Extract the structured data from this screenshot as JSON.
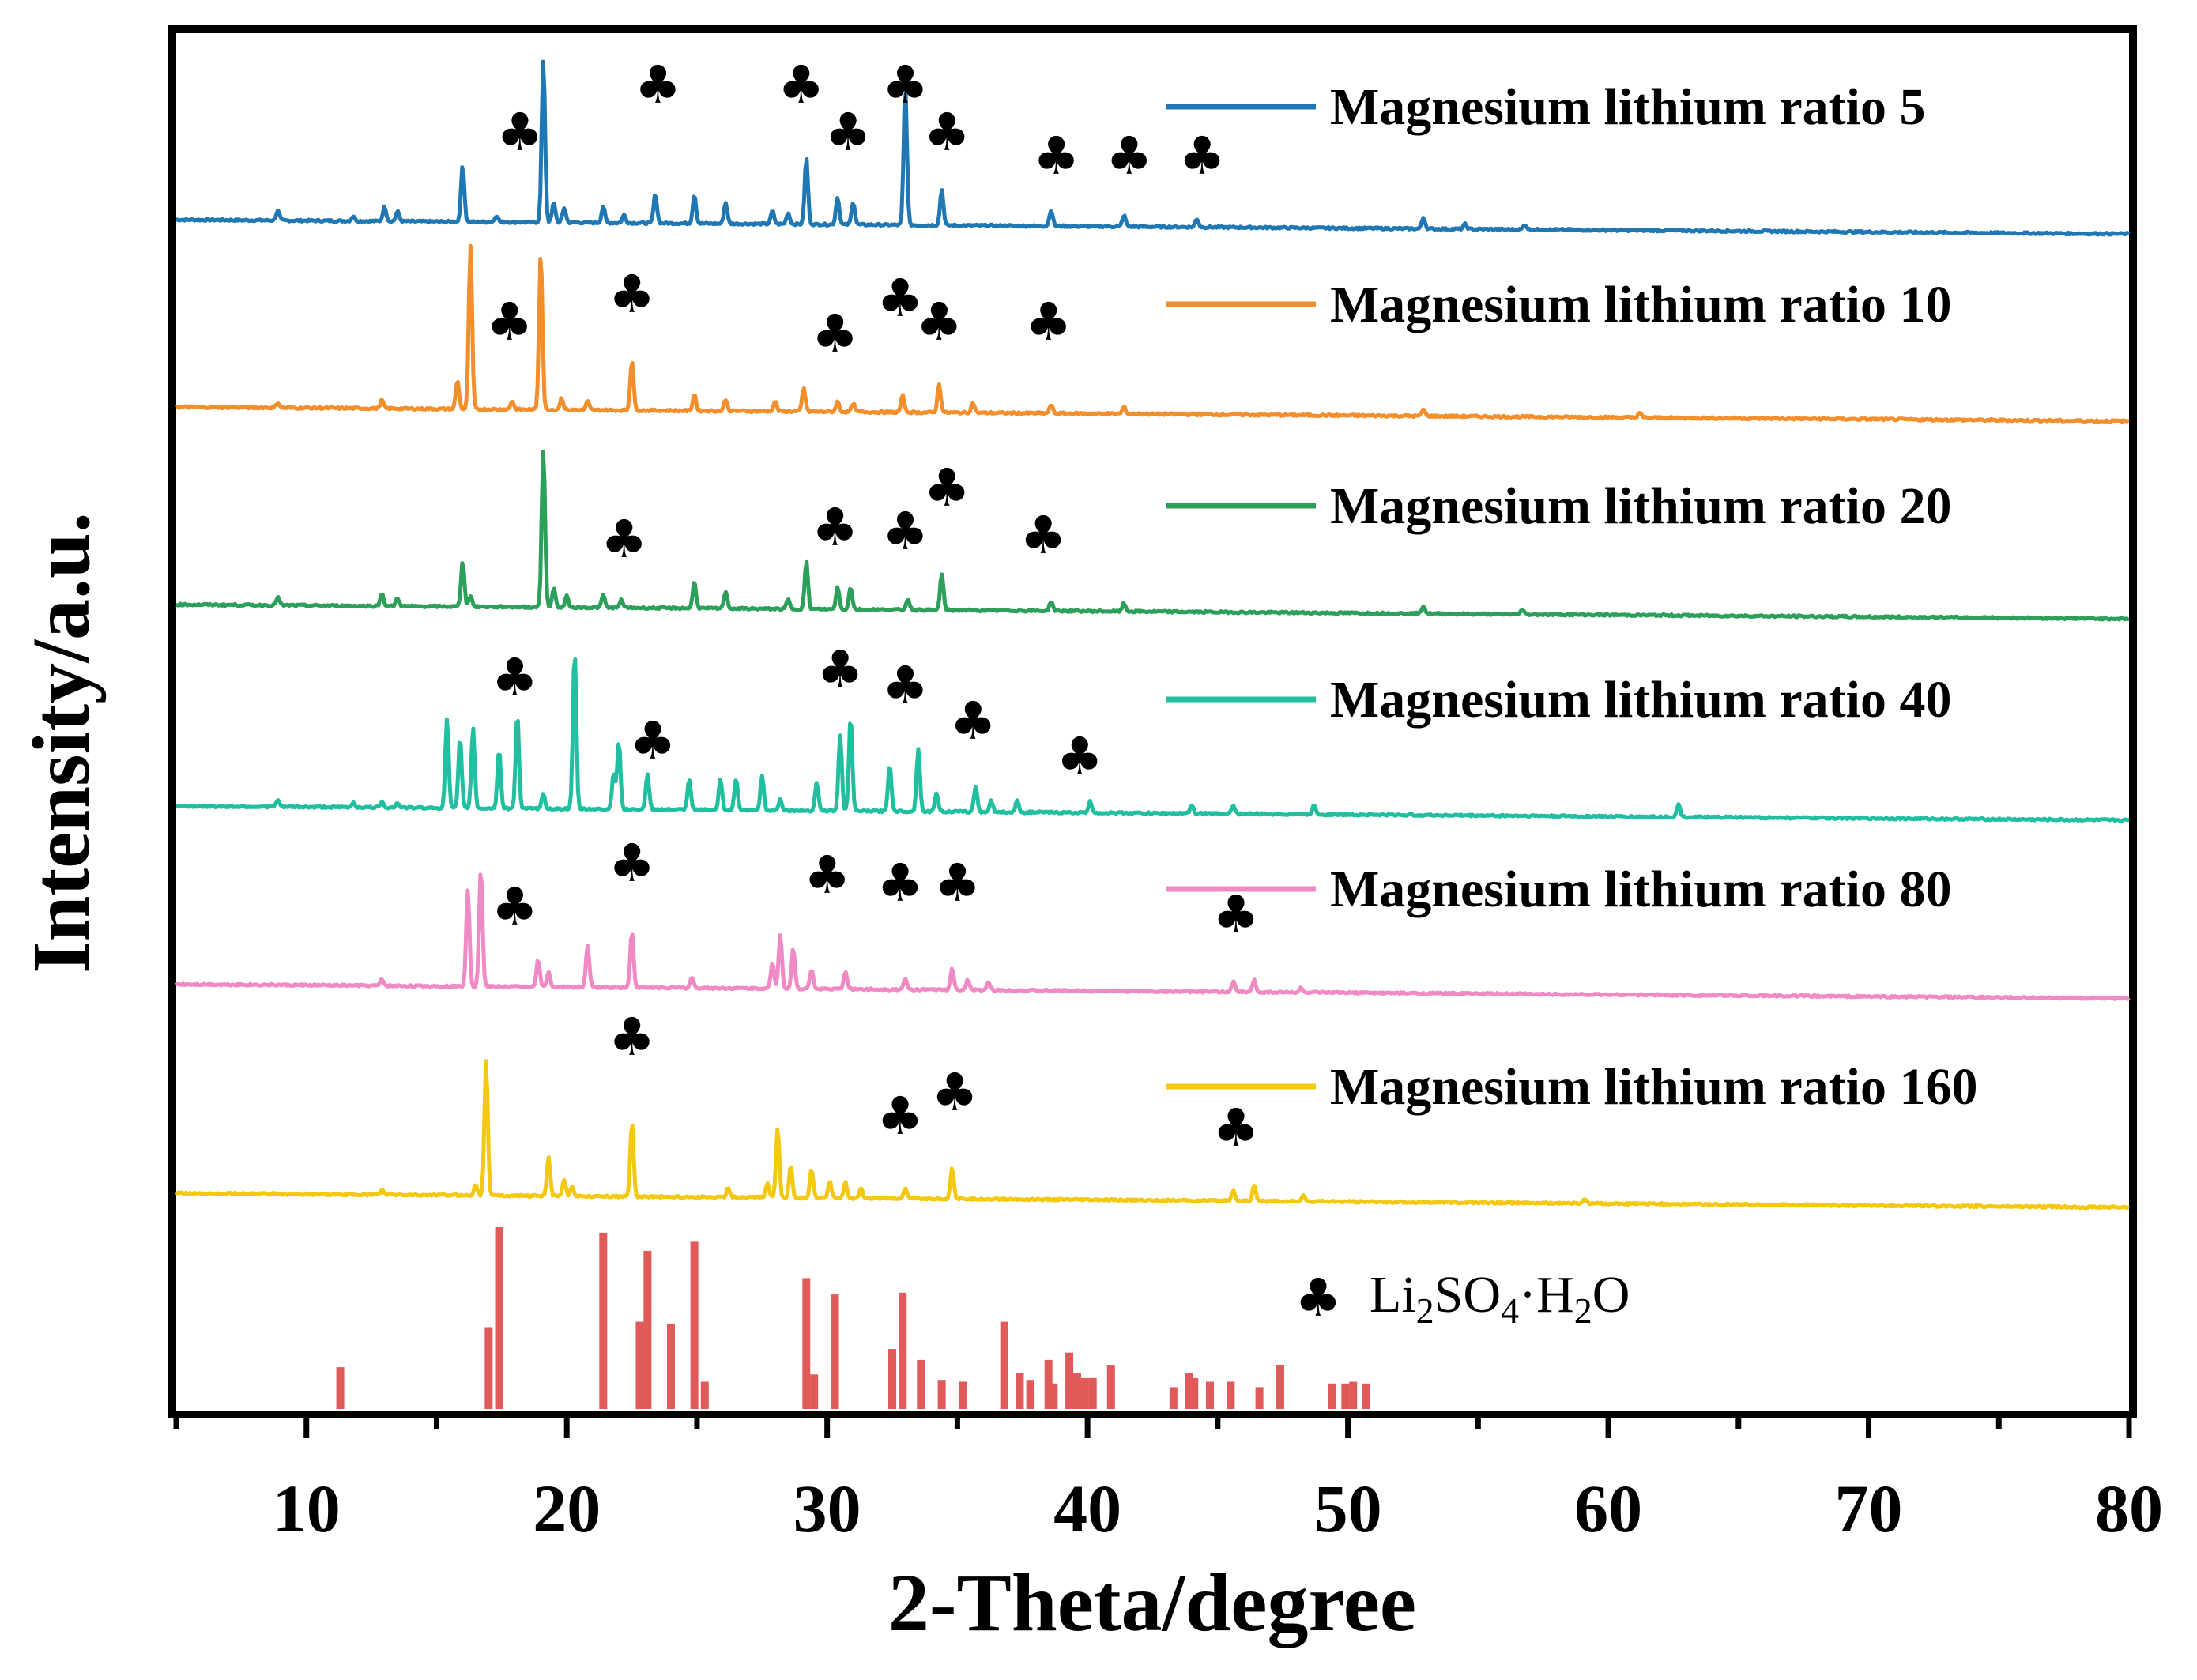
{
  "chart_data": {
    "type": "line",
    "xlabel": "2-Theta/degree",
    "ylabel": "Intensity/a.u.",
    "xlim": [
      5,
      80
    ],
    "xticks": [
      10,
      20,
      30,
      40,
      50,
      60,
      70,
      80
    ],
    "marker_symbol": "♣",
    "reference": {
      "name": "Li2SO4·H2O",
      "label_parts": [
        "Li",
        "2",
        "SO",
        "4",
        "·H",
        "2",
        "O"
      ],
      "color": "#e05a5a",
      "peaks": [
        {
          "x": 11.3,
          "h": 0.23
        },
        {
          "x": 17.0,
          "h": 0.45
        },
        {
          "x": 17.4,
          "h": 1.0
        },
        {
          "x": 21.4,
          "h": 0.97
        },
        {
          "x": 22.8,
          "h": 0.48
        },
        {
          "x": 23.1,
          "h": 0.87
        },
        {
          "x": 24.0,
          "h": 0.47
        },
        {
          "x": 24.9,
          "h": 0.92
        },
        {
          "x": 25.3,
          "h": 0.15
        },
        {
          "x": 29.2,
          "h": 0.72
        },
        {
          "x": 29.5,
          "h": 0.19
        },
        {
          "x": 30.3,
          "h": 0.63
        },
        {
          "x": 32.5,
          "h": 0.33
        },
        {
          "x": 32.9,
          "h": 0.64
        },
        {
          "x": 33.6,
          "h": 0.27
        },
        {
          "x": 34.4,
          "h": 0.16
        },
        {
          "x": 35.2,
          "h": 0.15
        },
        {
          "x": 36.8,
          "h": 0.48
        },
        {
          "x": 37.4,
          "h": 0.2
        },
        {
          "x": 37.8,
          "h": 0.16
        },
        {
          "x": 38.5,
          "h": 0.27
        },
        {
          "x": 38.7,
          "h": 0.14
        },
        {
          "x": 39.3,
          "h": 0.31
        },
        {
          "x": 39.6,
          "h": 0.2
        },
        {
          "x": 39.9,
          "h": 0.17
        },
        {
          "x": 40.2,
          "h": 0.17
        },
        {
          "x": 40.9,
          "h": 0.24
        },
        {
          "x": 43.3,
          "h": 0.12
        },
        {
          "x": 43.9,
          "h": 0.2
        },
        {
          "x": 44.1,
          "h": 0.17
        },
        {
          "x": 44.7,
          "h": 0.15
        },
        {
          "x": 45.5,
          "h": 0.15
        },
        {
          "x": 46.6,
          "h": 0.12
        },
        {
          "x": 47.4,
          "h": 0.24
        },
        {
          "x": 49.4,
          "h": 0.14
        },
        {
          "x": 49.9,
          "h": 0.14
        },
        {
          "x": 50.2,
          "h": 0.15
        },
        {
          "x": 50.7,
          "h": 0.14
        }
      ]
    },
    "series": [
      {
        "name": "Magnesium lithium ratio 5",
        "color": "#1f77b4",
        "baseline": 0.0,
        "peaks": [
          [
            8.9,
            0.06
          ],
          [
            11.8,
            0.03
          ],
          [
            13.0,
            0.09
          ],
          [
            13.5,
            0.06
          ],
          [
            16.0,
            0.35
          ],
          [
            17.3,
            0.04
          ],
          [
            19.1,
            1.0
          ],
          [
            19.5,
            0.12
          ],
          [
            19.9,
            0.09
          ],
          [
            21.4,
            0.1
          ],
          [
            22.2,
            0.05
          ],
          [
            23.4,
            0.18
          ],
          [
            24.9,
            0.18
          ],
          [
            26.1,
            0.13
          ],
          [
            27.9,
            0.08
          ],
          [
            28.5,
            0.07
          ],
          [
            29.2,
            0.41
          ],
          [
            30.4,
            0.17
          ],
          [
            31.0,
            0.14
          ],
          [
            33.0,
            0.84
          ],
          [
            34.4,
            0.22
          ],
          [
            38.6,
            0.1
          ],
          [
            41.4,
            0.07
          ],
          [
            44.2,
            0.05
          ],
          [
            52.9,
            0.07
          ],
          [
            54.5,
            0.03
          ],
          [
            56.8,
            0.03
          ]
        ],
        "markers": [
          18.2,
          23.5,
          29.0,
          30.8,
          33.0,
          34.6,
          38.8,
          41.6,
          44.4
        ]
      },
      {
        "name": "Magnesium lithium ratio 10",
        "color": "#f28e2b",
        "baseline": 0.0,
        "peaks": [
          [
            8.9,
            0.03
          ],
          [
            12.9,
            0.05
          ],
          [
            15.8,
            0.17
          ],
          [
            16.3,
            0.98
          ],
          [
            17.9,
            0.05
          ],
          [
            19.0,
            0.95
          ],
          [
            19.8,
            0.07
          ],
          [
            20.8,
            0.05
          ],
          [
            22.5,
            0.3
          ],
          [
            24.9,
            0.1
          ],
          [
            26.1,
            0.07
          ],
          [
            28.0,
            0.06
          ],
          [
            29.1,
            0.14
          ],
          [
            30.4,
            0.06
          ],
          [
            31.0,
            0.05
          ],
          [
            32.9,
            0.1
          ],
          [
            34.3,
            0.17
          ],
          [
            35.6,
            0.06
          ],
          [
            38.6,
            0.05
          ],
          [
            41.4,
            0.04
          ],
          [
            52.9,
            0.04
          ],
          [
            61.2,
            0.03
          ]
        ],
        "markers": [
          17.8,
          22.5,
          30.3,
          32.8,
          34.3,
          38.5
        ]
      },
      {
        "name": "Magnesium lithium ratio 20",
        "color": "#2ca05a",
        "baseline": 0.0,
        "peaks": [
          [
            8.9,
            0.05
          ],
          [
            12.9,
            0.08
          ],
          [
            13.5,
            0.05
          ],
          [
            16.0,
            0.29
          ],
          [
            16.3,
            0.07
          ],
          [
            19.1,
            1.0
          ],
          [
            19.5,
            0.12
          ],
          [
            20.0,
            0.07
          ],
          [
            21.4,
            0.08
          ],
          [
            22.1,
            0.05
          ],
          [
            24.9,
            0.17
          ],
          [
            26.1,
            0.11
          ],
          [
            28.5,
            0.06
          ],
          [
            29.2,
            0.3
          ],
          [
            30.4,
            0.14
          ],
          [
            30.9,
            0.14
          ],
          [
            33.1,
            0.07
          ],
          [
            34.4,
            0.23
          ],
          [
            38.6,
            0.06
          ],
          [
            41.4,
            0.05
          ],
          [
            52.9,
            0.05
          ],
          [
            56.7,
            0.03
          ]
        ],
        "markers": [
          22.2,
          30.3,
          33.0,
          34.6,
          38.3
        ]
      },
      {
        "name": "Magnesium lithium ratio 40",
        "color": "#1fbf9f",
        "baseline": 0.0,
        "peaks": [
          [
            8.9,
            0.04
          ],
          [
            11.8,
            0.03
          ],
          [
            12.9,
            0.04
          ],
          [
            13.5,
            0.03
          ],
          [
            15.4,
            0.57
          ],
          [
            15.9,
            0.44
          ],
          [
            16.4,
            0.51
          ],
          [
            17.4,
            0.37
          ],
          [
            18.1,
            0.6
          ],
          [
            19.1,
            0.09
          ],
          [
            20.3,
            1.0
          ],
          [
            21.8,
            0.23
          ],
          [
            22.0,
            0.42
          ],
          [
            23.1,
            0.22
          ],
          [
            24.7,
            0.19
          ],
          [
            25.9,
            0.2
          ],
          [
            26.5,
            0.2
          ],
          [
            27.5,
            0.22
          ],
          [
            28.2,
            0.07
          ],
          [
            29.6,
            0.18
          ],
          [
            30.5,
            0.48
          ],
          [
            30.9,
            0.6
          ],
          [
            32.4,
            0.3
          ],
          [
            33.5,
            0.4
          ],
          [
            34.2,
            0.12
          ],
          [
            35.7,
            0.16
          ],
          [
            36.3,
            0.07
          ],
          [
            37.3,
            0.07
          ],
          [
            40.1,
            0.07
          ],
          [
            44.0,
            0.05
          ],
          [
            45.6,
            0.05
          ],
          [
            48.7,
            0.06
          ],
          [
            62.7,
            0.08
          ]
        ],
        "markers": [
          18.0,
          23.3,
          30.5,
          33.0,
          35.6,
          39.7
        ]
      },
      {
        "name": "Magnesium lithium ratio 80",
        "color": "#f08ac5",
        "baseline": 0.05,
        "peaks": [
          [
            12.9,
            0.04
          ],
          [
            16.2,
            0.64
          ],
          [
            16.7,
            0.79
          ],
          [
            18.9,
            0.18
          ],
          [
            19.3,
            0.1
          ],
          [
            20.8,
            0.28
          ],
          [
            22.5,
            0.37
          ],
          [
            24.8,
            0.07
          ],
          [
            27.9,
            0.17
          ],
          [
            28.2,
            0.36
          ],
          [
            28.7,
            0.27
          ],
          [
            29.4,
            0.13
          ],
          [
            30.7,
            0.12
          ],
          [
            33.0,
            0.07
          ],
          [
            34.8,
            0.14
          ],
          [
            35.4,
            0.07
          ],
          [
            36.2,
            0.05
          ],
          [
            45.6,
            0.07
          ],
          [
            46.4,
            0.08
          ],
          [
            48.2,
            0.03
          ]
        ],
        "markers": [
          18.0,
          22.5,
          30.0,
          32.8,
          35.0,
          45.7
        ]
      },
      {
        "name": "Magnesium lithium ratio 160",
        "color": "#f2c811",
        "baseline": 0.0,
        "peaks": [
          [
            12.9,
            0.03
          ],
          [
            16.5,
            0.07
          ],
          [
            16.9,
            0.86
          ],
          [
            19.3,
            0.24
          ],
          [
            19.9,
            0.1
          ],
          [
            20.2,
            0.06
          ],
          [
            22.5,
            0.47
          ],
          [
            26.2,
            0.06
          ],
          [
            27.7,
            0.09
          ],
          [
            28.1,
            0.44
          ],
          [
            28.6,
            0.2
          ],
          [
            29.4,
            0.18
          ],
          [
            30.1,
            0.11
          ],
          [
            30.7,
            0.1
          ],
          [
            31.3,
            0.06
          ],
          [
            33.0,
            0.06
          ],
          [
            34.8,
            0.2
          ],
          [
            45.6,
            0.07
          ],
          [
            46.4,
            0.1
          ],
          [
            48.3,
            0.04
          ],
          [
            59.1,
            0.03
          ]
        ],
        "markers": [
          22.5,
          32.8,
          34.9,
          45.7
        ]
      }
    ]
  }
}
